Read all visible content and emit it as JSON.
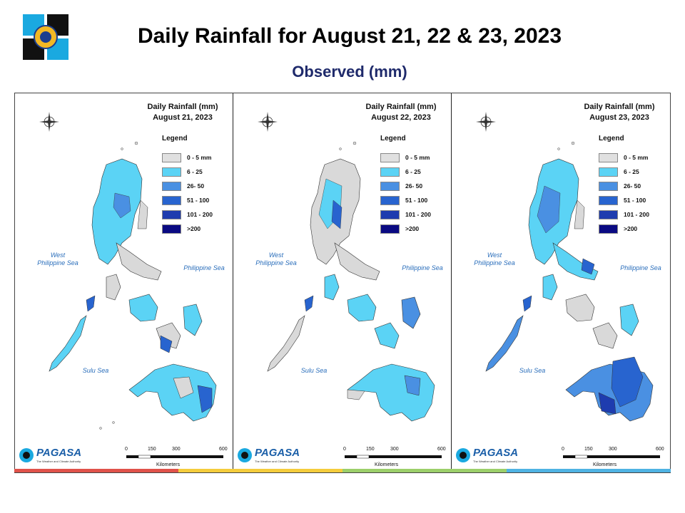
{
  "header": {
    "title": "Daily Rainfall for August 21, 22 & 23, 2023",
    "subtitle": "Observed (mm)"
  },
  "legend": {
    "title": "Legend",
    "items": [
      {
        "label": "0 - 5 mm",
        "color": "#e0e0e0"
      },
      {
        "label": "6 - 25",
        "color": "#5bd3f5"
      },
      {
        "label": "26- 50",
        "color": "#4a90e2"
      },
      {
        "label": "51 - 100",
        "color": "#2864cf"
      },
      {
        "label": "101 - 200",
        "color": "#1e3caf"
      },
      {
        "label": ">200",
        "color": "#0a0a82"
      }
    ]
  },
  "panels": [
    {
      "heading": "Daily Rainfall (mm)",
      "date": "August 21, 2023"
    },
    {
      "heading": "Daily Rainfall (mm)",
      "date": "August 22, 2023"
    },
    {
      "heading": "Daily Rainfall (mm)",
      "date": "August 23, 2023"
    }
  ],
  "seas": {
    "west": "West Philippine Sea",
    "east": "Philippine Sea",
    "sulu": "Sulu Sea"
  },
  "compass": {
    "n": "N",
    "s": "S",
    "e": "E",
    "w": "W"
  },
  "scale": {
    "ticks": [
      "0",
      "150",
      "300",
      "600"
    ],
    "unit": "Kilometers"
  },
  "branding": {
    "name": "PAGASA",
    "dost": "DOST",
    "tagline": "The Weather and Climate Authority"
  },
  "stripe_colors": [
    "#e0524a",
    "#f4cc3c",
    "#9ccf6a",
    "#4fb3e3"
  ]
}
